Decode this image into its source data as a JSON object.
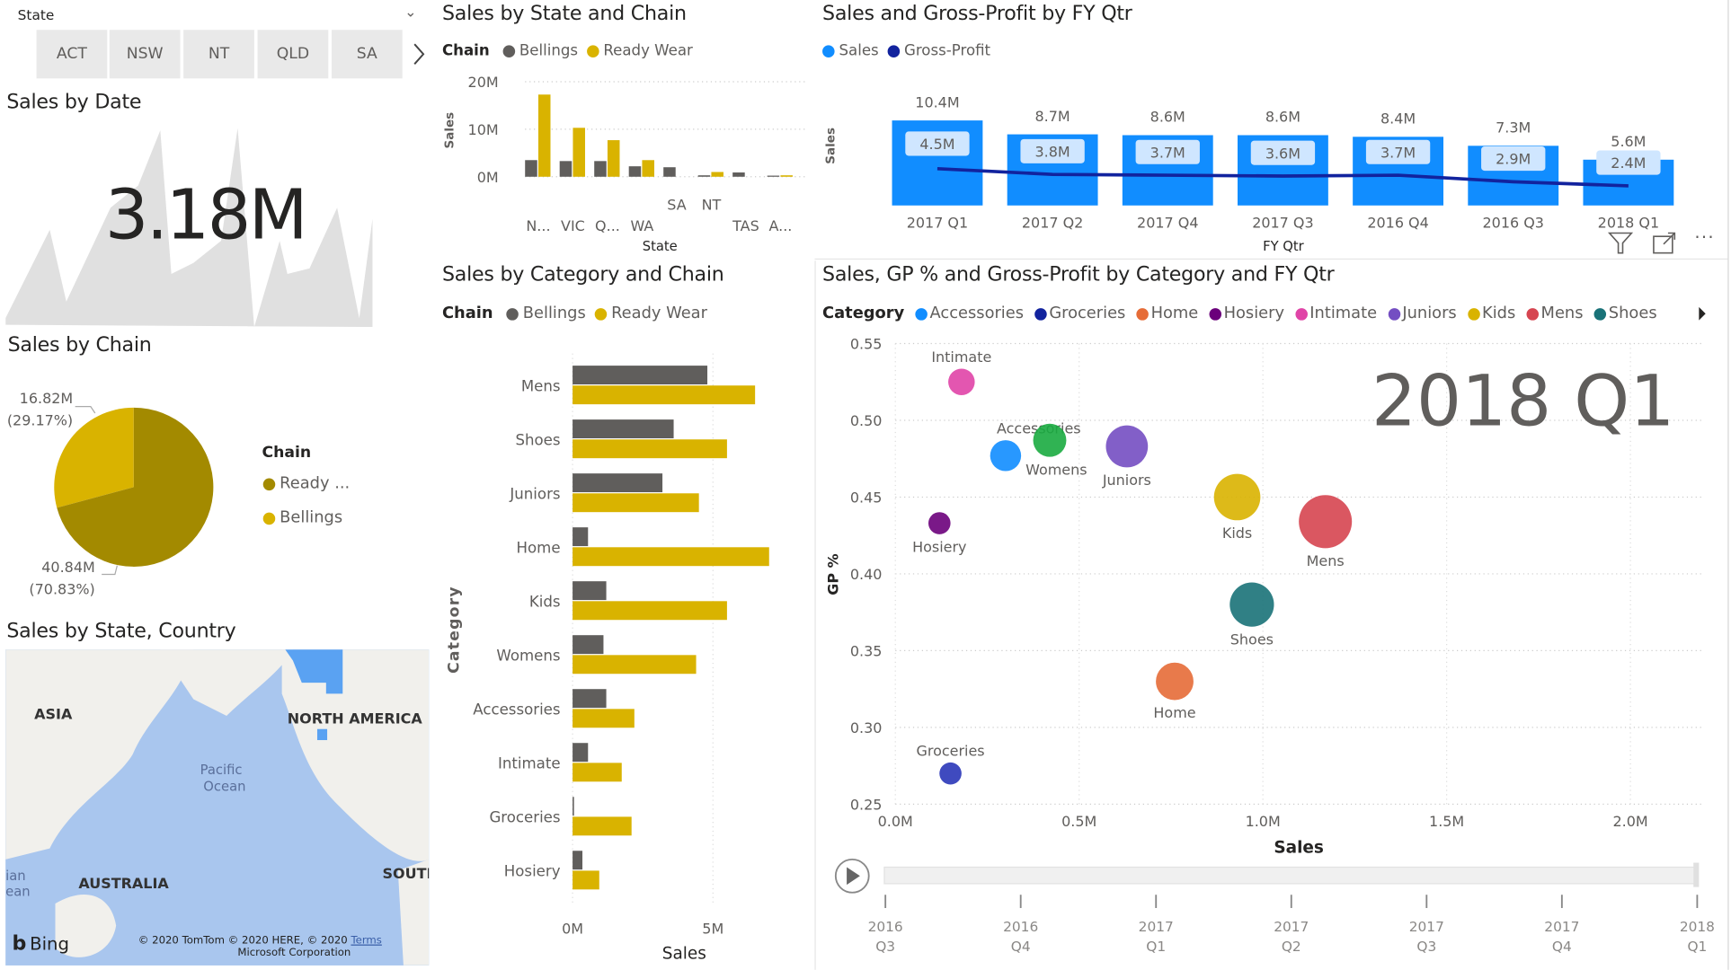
{
  "slicer": {
    "label": "State",
    "options": [
      "ACT",
      "NSW",
      "NT",
      "QLD",
      "SA"
    ]
  },
  "kpi": {
    "title": "Sales by Date",
    "value": "3.18M"
  },
  "pie": {
    "title": "Sales by Chain",
    "legend_title": "Chain",
    "legend": [
      "Ready ...",
      "Bellings"
    ],
    "slices": [
      {
        "name": "Bellings",
        "value_label": "16.82M",
        "pct_label": "(29.17%)",
        "value": 16.82,
        "pct": 29.17,
        "color": "#D9B300"
      },
      {
        "name": "Ready Wear",
        "value_label": "40.84M",
        "pct_label": "(70.83%)",
        "value": 40.84,
        "pct": 70.83,
        "color": "#A38A00"
      }
    ]
  },
  "map": {
    "title": "Sales by State, Country",
    "labels": {
      "asia": "ASIA",
      "na": "NORTH AMERICA",
      "pacific1": "Pacific",
      "pacific2": "Ocean",
      "australia": "AUSTRALIA",
      "south": "SOUTI",
      "left1": "ian",
      "left2": "ean"
    },
    "bing": "Bing",
    "copyright1": "© 2020 TomTom © 2020 HERE, © 2020",
    "terms": "Terms",
    "copyright2": "Microsoft Corporation"
  },
  "chart_data": [
    {
      "id": "state",
      "type": "bar",
      "title": "Sales by State and Chain",
      "legend_title": "Chain",
      "xlabel": "State",
      "ylabel": "Sales",
      "categories": [
        "N...",
        "VIC",
        "Q...",
        "WA",
        "SA",
        "NT",
        "TAS",
        "A..."
      ],
      "yticks": [
        "20M",
        "10M",
        "0M"
      ],
      "ylim": [
        0,
        20
      ],
      "series": [
        {
          "name": "Bellings",
          "color": "#605E5C",
          "values": [
            3.5,
            3.3,
            3.3,
            2.2,
            2.0,
            0.3,
            0.9,
            0.2
          ]
        },
        {
          "name": "Ready Wear",
          "color": "#D9B300",
          "values": [
            17.3,
            10.3,
            7.7,
            3.5,
            0,
            1.0,
            0,
            0.3
          ]
        }
      ]
    },
    {
      "id": "qtr",
      "type": "bar",
      "title": "Sales and Gross-Profit by FY Qtr",
      "xlabel": "FY Qtr",
      "ylabel": "Sales",
      "categories": [
        "2017 Q1",
        "2017 Q2",
        "2017 Q4",
        "2017 Q3",
        "2016 Q4",
        "2016 Q3",
        "2018 Q1"
      ],
      "series": [
        {
          "name": "Sales",
          "color": "#118DFF",
          "values": [
            10.4,
            8.7,
            8.6,
            8.6,
            8.4,
            7.3,
            5.6
          ],
          "labels": [
            "10.4M",
            "8.7M",
            "8.6M",
            "8.6M",
            "8.4M",
            "7.3M",
            "5.6M"
          ]
        },
        {
          "name": "Gross-Profit",
          "type": "line",
          "color": "#12239E",
          "values": [
            4.5,
            3.8,
            3.7,
            3.6,
            3.7,
            2.9,
            2.4
          ],
          "labels": [
            "4.5M",
            "3.8M",
            "3.7M",
            "3.6M",
            "3.7M",
            "2.9M",
            "2.4M"
          ]
        }
      ]
    },
    {
      "id": "category",
      "type": "bar",
      "title": "Sales by Category and Chain",
      "legend_title": "Chain",
      "xlabel": "Sales",
      "ylabel": "Category",
      "categories": [
        "Mens",
        "Shoes",
        "Juniors",
        "Home",
        "Kids",
        "Womens",
        "Accessories",
        "Intimate",
        "Groceries",
        "Hosiery"
      ],
      "xticks": [
        "0M",
        "5M"
      ],
      "series": [
        {
          "name": "Bellings",
          "color": "#605E5C",
          "values": [
            4.8,
            3.6,
            3.2,
            0.55,
            1.2,
            1.1,
            1.2,
            0.55,
            0.05,
            0.35
          ]
        },
        {
          "name": "Ready Wear",
          "color": "#D9B300",
          "values": [
            6.5,
            5.5,
            4.5,
            7.0,
            5.5,
            4.4,
            2.2,
            1.75,
            2.1,
            0.95
          ]
        }
      ]
    },
    {
      "id": "scatter",
      "type": "scatter",
      "title": "Sales, GP % and Gross-Profit by Category and FY Qtr",
      "legend_title": "Category",
      "xlabel": "Sales",
      "ylabel": "GP %",
      "xlim": [
        0,
        2.2
      ],
      "ylim": [
        0.25,
        0.55
      ],
      "xticks": [
        "0.0M",
        "0.5M",
        "1.0M",
        "1.5M",
        "2.0M"
      ],
      "yticks": [
        "0.55",
        "0.50",
        "0.45",
        "0.40",
        "0.35",
        "0.30",
        "0.25"
      ],
      "frame_label": "2018 Q1",
      "legend": [
        {
          "name": "Accessories",
          "color": "#118DFF"
        },
        {
          "name": "Groceries",
          "color": "#12239E"
        },
        {
          "name": "Home",
          "color": "#E66C37"
        },
        {
          "name": "Hosiery",
          "color": "#6B007B"
        },
        {
          "name": "Intimate",
          "color": "#E044A7"
        },
        {
          "name": "Juniors",
          "color": "#744EC2"
        },
        {
          "name": "Kids",
          "color": "#D9B300"
        },
        {
          "name": "Mens",
          "color": "#D64550"
        },
        {
          "name": "Shoes",
          "color": "#197278"
        }
      ],
      "points": [
        {
          "name": "Intimate",
          "x": 0.18,
          "y": 0.525,
          "size": 12,
          "color": "#E044A7",
          "label_pos": "top"
        },
        {
          "name": "Accessories",
          "x": 0.3,
          "y": 0.477,
          "size": 14,
          "color": "#118DFF",
          "label_pos": "top"
        },
        {
          "name": "Womens",
          "x": 0.42,
          "y": 0.487,
          "size": 15,
          "color": "#1AAB40",
          "label_pos": "bottom"
        },
        {
          "name": "Juniors",
          "x": 0.63,
          "y": 0.483,
          "size": 19,
          "color": "#744EC2",
          "label_pos": "bottom"
        },
        {
          "name": "Hosiery",
          "x": 0.12,
          "y": 0.433,
          "size": 10,
          "color": "#6B007B",
          "label_pos": "bottom"
        },
        {
          "name": "Kids",
          "x": 0.93,
          "y": 0.45,
          "size": 21,
          "color": "#D9B300",
          "label_pos": "bottom"
        },
        {
          "name": "Mens",
          "x": 1.17,
          "y": 0.434,
          "size": 24,
          "color": "#D64550",
          "label_pos": "bottom"
        },
        {
          "name": "Shoes",
          "x": 0.97,
          "y": 0.38,
          "size": 20,
          "color": "#197278",
          "label_pos": "bottom"
        },
        {
          "name": "Home",
          "x": 0.76,
          "y": 0.33,
          "size": 17,
          "color": "#E66C37",
          "label_pos": "bottom"
        },
        {
          "name": "Groceries",
          "x": 0.15,
          "y": 0.27,
          "size": 10,
          "color": "#2A36B8",
          "label_pos": "top"
        }
      ],
      "play_axis": {
        "labels": [
          [
            "2016",
            "Q3"
          ],
          [
            "2016",
            "Q4"
          ],
          [
            "2017",
            "Q1"
          ],
          [
            "2017",
            "Q2"
          ],
          [
            "2017",
            "Q3"
          ],
          [
            "2017",
            "Q4"
          ],
          [
            "2018",
            "Q1"
          ]
        ],
        "current_index": 6
      }
    }
  ]
}
